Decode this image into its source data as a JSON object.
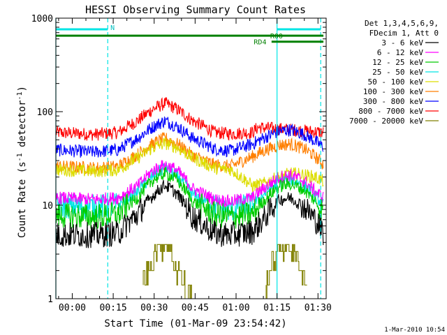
{
  "chart_data": {
    "type": "line",
    "title": "HESSI Observing Summary Count Rates",
    "xlabel": "Start Time (01-Mar-09 23:54:42)",
    "ylabel_main": "Count Rate (s",
    "ylabel_sup1": "-1",
    "ylabel_mid": " detector",
    "ylabel_sup2": "-1",
    "ylabel_end": ")",
    "yscale": "log",
    "ylim": [
      1,
      1000
    ],
    "xlim_minutes": [
      -6,
      93
    ],
    "x_ticks": [
      {
        "label": "00:00",
        "minute": 0
      },
      {
        "label": "00:15",
        "minute": 15
      },
      {
        "label": "00:30",
        "minute": 30
      },
      {
        "label": "00:45",
        "minute": 45
      },
      {
        "label": "01:00",
        "minute": 60
      },
      {
        "label": "01:15",
        "minute": 75
      },
      {
        "label": "01:30",
        "minute": 90
      }
    ],
    "y_ticks": [
      {
        "label": "1",
        "value": 1
      },
      {
        "label": "10",
        "value": 10
      },
      {
        "label": "100",
        "value": 100
      },
      {
        "label": "1000",
        "value": 1000
      }
    ],
    "legend_header": [
      "Det 1,3,4,5,6,9,",
      "FDecim 1, Att 0"
    ],
    "legend_placement": "right",
    "series": [
      {
        "name": "3 - 6 keV",
        "color": "#000000",
        "x": [
          -6,
          8,
          17,
          24,
          30,
          34,
          38,
          44,
          52,
          58,
          66,
          70,
          76,
          80,
          85,
          89,
          92
        ],
        "y": [
          4.8,
          4.8,
          5.0,
          8.0,
          13.0,
          16.5,
          13.5,
          7.5,
          5.0,
          4.8,
          5.2,
          7.0,
          11.5,
          12.0,
          9.5,
          7.0,
          5.0
        ]
      },
      {
        "name": "6 - 12 keV",
        "color": "#ff00ff",
        "x": [
          -6,
          8,
          17,
          24,
          30,
          34,
          38,
          44,
          52,
          58,
          66,
          70,
          76,
          80,
          85,
          89,
          92
        ],
        "y": [
          12.0,
          11.5,
          12.0,
          16.0,
          24.0,
          27.0,
          24.0,
          15.0,
          11.5,
          11.0,
          12.0,
          15.0,
          20.0,
          21.0,
          18.0,
          14.0,
          12.0
        ]
      },
      {
        "name": "12 - 25 keV",
        "color": "#00cc00",
        "x": [
          -6,
          8,
          17,
          24,
          30,
          34,
          38,
          44,
          52,
          58,
          66,
          70,
          76,
          80,
          85,
          89,
          92
        ],
        "y": [
          7.8,
          7.5,
          8.0,
          12.0,
          19.0,
          22.0,
          19.0,
          11.0,
          8.0,
          7.5,
          8.0,
          11.0,
          16.0,
          17.0,
          14.5,
          11.0,
          8.5
        ]
      },
      {
        "name": "25 - 50 keV",
        "color": "#00e5e5",
        "x": [
          -6,
          8,
          17,
          24,
          30,
          34,
          38,
          44,
          52,
          58,
          66,
          70,
          76,
          80,
          85,
          89,
          92
        ],
        "y": [
          10.0,
          9.5,
          10.0,
          14.0,
          21.0,
          25.0,
          21.0,
          13.0,
          9.5,
          9.0,
          10.0,
          13.0,
          18.0,
          19.0,
          16.0,
          12.5,
          10.0
        ]
      },
      {
        "name": "50 - 100 keV",
        "color": "#dddd00",
        "x": [
          -6,
          8,
          17,
          24,
          30,
          34,
          38,
          44,
          52,
          58,
          66,
          70,
          76,
          80,
          85,
          89,
          92
        ],
        "y": [
          24.0,
          23.0,
          24.0,
          32.0,
          42.0,
          46.0,
          42.0,
          32.0,
          25.0,
          24.0,
          16.0,
          17.0,
          20.0,
          22.0,
          21.0,
          20.0,
          18.0
        ]
      },
      {
        "name": "100 - 300 keV",
        "color": "#ff7f00",
        "x": [
          -6,
          8,
          17,
          24,
          30,
          34,
          38,
          44,
          52,
          58,
          66,
          70,
          76,
          80,
          85,
          89,
          92
        ],
        "y": [
          26.0,
          25.0,
          26.0,
          35.0,
          46.0,
          52.0,
          46.0,
          34.0,
          27.0,
          26.0,
          33.0,
          38.0,
          44.0,
          45.0,
          40.0,
          33.0,
          27.0
        ]
      },
      {
        "name": "300 - 800 keV",
        "color": "#0000ff",
        "x": [
          -6,
          8,
          17,
          24,
          30,
          34,
          38,
          44,
          52,
          58,
          66,
          70,
          76,
          80,
          85,
          89,
          92
        ],
        "y": [
          39.0,
          37.0,
          39.0,
          52.0,
          70.0,
          80.0,
          70.0,
          52.0,
          40.0,
          38.0,
          45.0,
          52.0,
          62.0,
          64.0,
          57.0,
          48.0,
          42.0
        ]
      },
      {
        "name": "800 - 7000 keV",
        "color": "#ff0000",
        "x": [
          -6,
          8,
          17,
          24,
          30,
          34,
          38,
          44,
          52,
          58,
          66,
          68,
          92
        ],
        "y": [
          60.0,
          57.0,
          60.0,
          80.0,
          108.0,
          123.0,
          108.0,
          80.0,
          60.0,
          58.0,
          60.0,
          68.0,
          60.0
        ]
      },
      {
        "name": "7000 - 20000 keV",
        "color": "#808000",
        "x": [
          26,
          29,
          32,
          35,
          38,
          41,
          44,
          71,
          74,
          77,
          80,
          83,
          86
        ],
        "y": [
          1.3,
          2.4,
          3.8,
          3.8,
          2.4,
          1.4,
          1.0,
          1.4,
          2.4,
          3.8,
          3.8,
          2.4,
          1.5
        ]
      }
    ],
    "annotations": {
      "n_label": "N",
      "r00_label": "R00",
      "rd4_label": "RD4",
      "timestamp": "1-Mar-2010 10:54"
    },
    "status_bars": [
      {
        "label": "N",
        "color": "#00e5e5",
        "x0": -6,
        "x1": 13,
        "y": 760
      },
      {
        "label": "",
        "color": "#00e5e5",
        "x0": 75,
        "x1": 91,
        "y": 760
      },
      {
        "label": "R00",
        "color": "#008000",
        "x0": -6,
        "x1": 92,
        "y": 650
      },
      {
        "label": "RD4",
        "color": "#008000",
        "x0": 73,
        "x1": 92,
        "y": 560
      }
    ],
    "vertical_markers": [
      {
        "color": "#00e5e5",
        "minute": -6,
        "style": "solid"
      },
      {
        "color": "#00e5e5",
        "minute": 13,
        "style": "dashed"
      },
      {
        "color": "#00e5e5",
        "minute": 75,
        "style": "solid"
      },
      {
        "color": "#00e5e5",
        "minute": 91,
        "style": "dashed"
      }
    ]
  }
}
